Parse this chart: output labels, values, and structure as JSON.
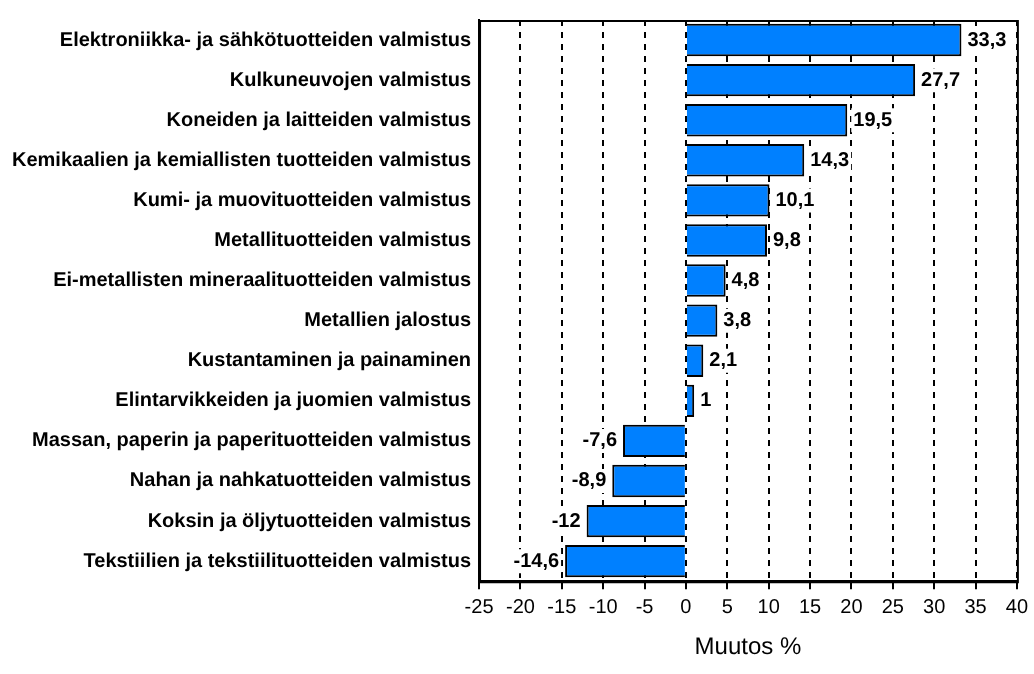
{
  "chart_data": {
    "type": "bar",
    "orientation": "horizontal",
    "xlabel": "Muutos %",
    "categories": [
      "Elektroniikka- ja sähkötuotteiden valmistus",
      "Kulkuneuvojen valmistus",
      "Koneiden ja laitteiden valmistus",
      "Kemikaalien ja kemiallisten tuotteiden valmistus",
      "Kumi- ja muovituotteiden valmistus",
      "Metallituotteiden valmistus",
      "Ei-metallisten mineraalituotteiden valmistus",
      "Metallien jalostus",
      "Kustantaminen ja painaminen",
      "Elintarvikkeiden ja juomien valmistus",
      "Massan, paperin ja paperituotteiden valmistus",
      "Nahan ja nahkatuotteiden valmistus",
      "Koksin ja öljytuotteiden valmistus",
      "Tekstiilien ja tekstiilituotteiden valmistus"
    ],
    "values": [
      33.3,
      27.7,
      19.5,
      14.3,
      10.1,
      9.8,
      4.8,
      3.8,
      2.1,
      1,
      -7.6,
      -8.9,
      -12,
      -14.6
    ],
    "value_labels": [
      "33,3",
      "27,7",
      "19,5",
      "14,3",
      "10,1",
      "9,8",
      "4,8",
      "3,8",
      "2,1",
      "1",
      "-7,6",
      "-8,9",
      "-12",
      "-14,6"
    ],
    "color": "#0080ff",
    "xlim": [
      -25,
      40
    ],
    "xticks": [
      -25,
      -20,
      -15,
      -10,
      -5,
      0,
      5,
      10,
      15,
      20,
      25,
      30,
      35,
      40
    ],
    "grid": "x",
    "legend": false
  }
}
